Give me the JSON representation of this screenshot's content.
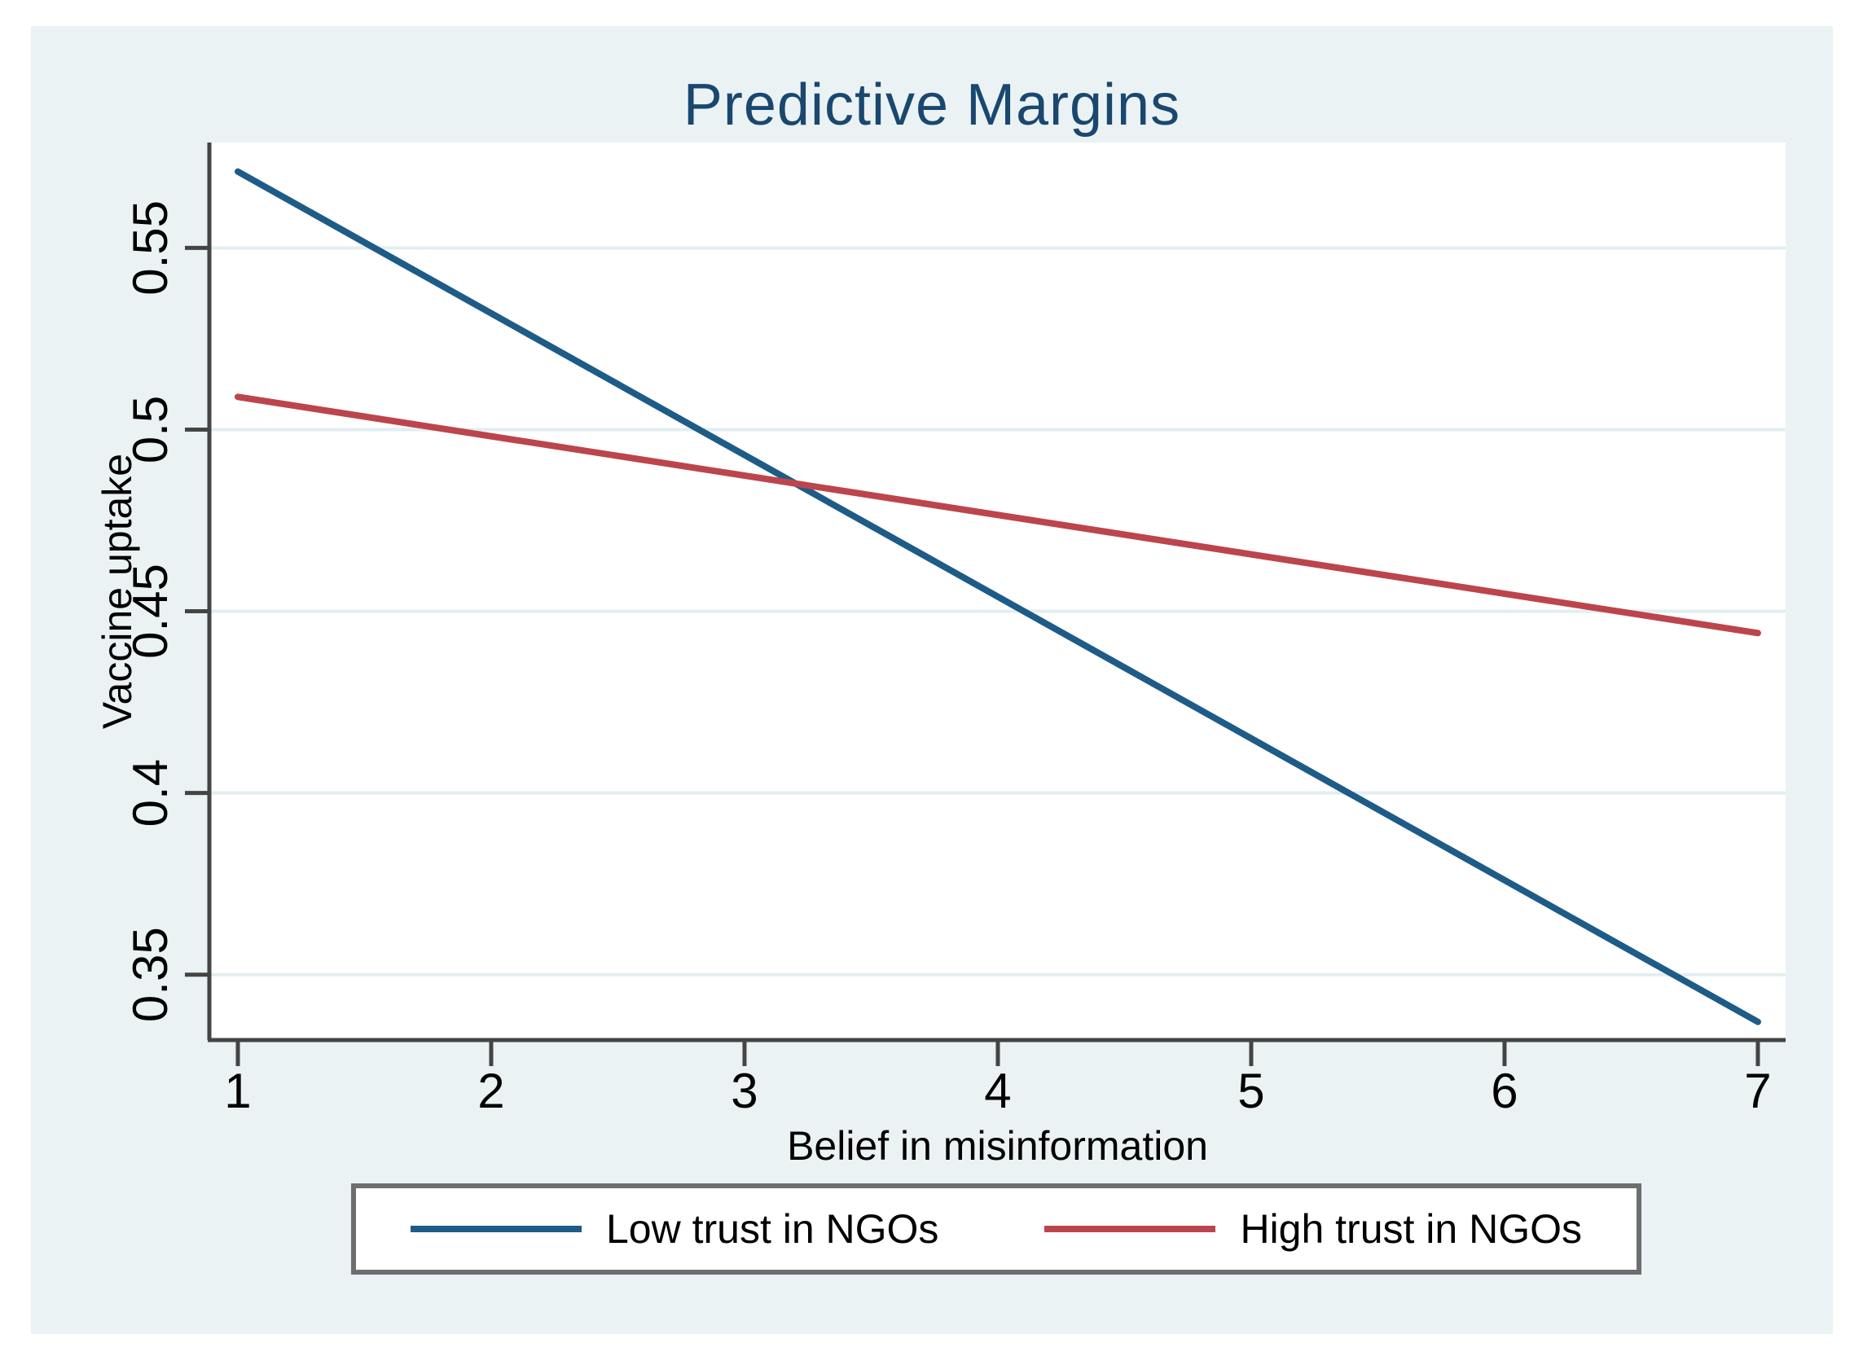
{
  "chart_data": {
    "type": "line",
    "title": "Predictive Margins",
    "xlabel": "Belief in misinformation",
    "ylabel": "Vaccine uptake",
    "x_ticks": [
      1,
      2,
      3,
      4,
      5,
      6,
      7
    ],
    "x_tick_labels": [
      "1",
      "2",
      "3",
      "4",
      "5",
      "6",
      "7"
    ],
    "y_ticks": [
      0.35,
      0.4,
      0.45,
      0.5,
      0.55
    ],
    "y_tick_labels": [
      "0.35",
      "0.4",
      "0.45",
      "0.5",
      "0.55"
    ],
    "xlim": [
      0.8875,
      7.1095
    ],
    "ylim": [
      0.332,
      0.579
    ],
    "grid": "horizontal gridlines at y ticks",
    "legend_position": "bottom",
    "series": [
      {
        "name": "Low trust in NGOs",
        "color": "#1e5c87",
        "x": [
          1,
          7
        ],
        "y": [
          0.571,
          0.337
        ]
      },
      {
        "name": "High trust in NGOs",
        "color": "#bc454d",
        "x": [
          1,
          7
        ],
        "y": [
          0.509,
          0.444
        ]
      }
    ]
  },
  "colors": {
    "page_bg": "#ffffff",
    "canvas_bg": "#eaf2f3",
    "plot_bg": "#ffffff",
    "gridline": "#e2eef0",
    "axis": "#444444",
    "title_text": "#1a476f",
    "tick_text": "#000000",
    "legend_border": "#6e6e6e"
  }
}
